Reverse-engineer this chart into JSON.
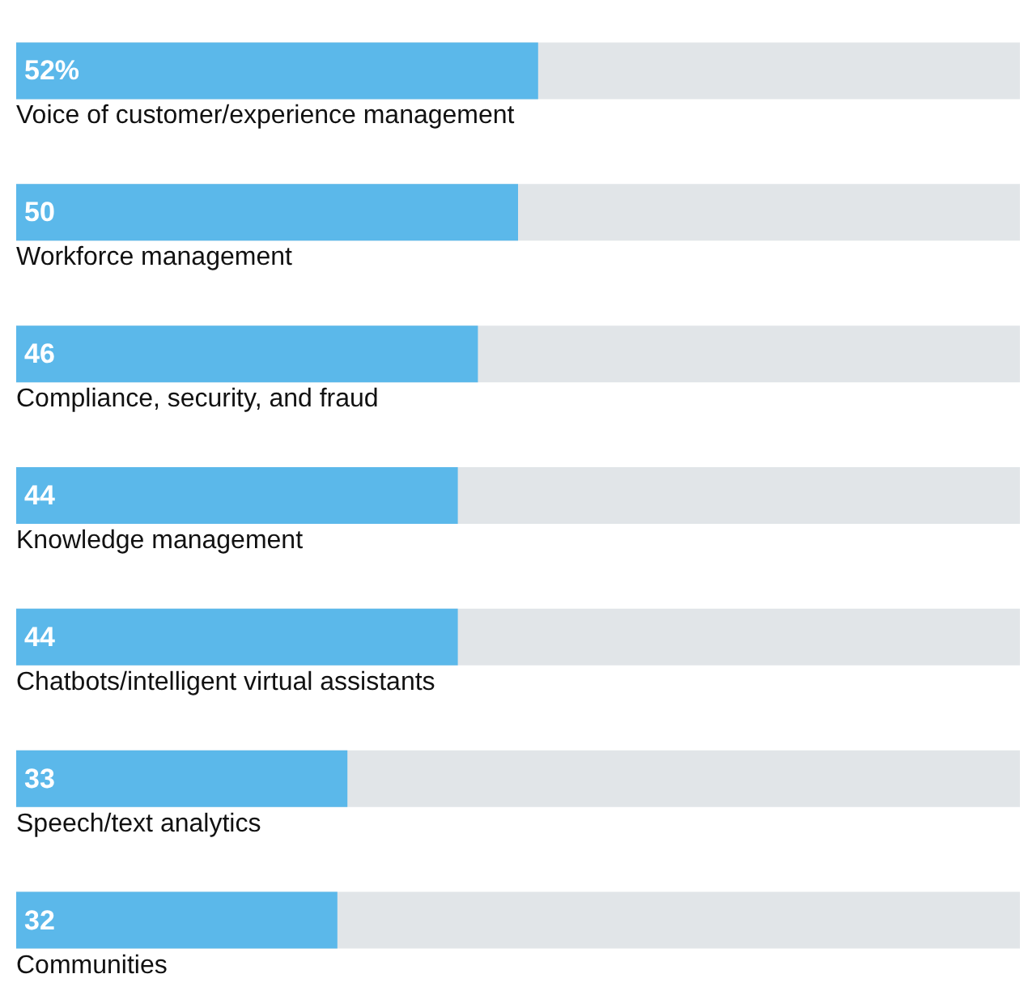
{
  "chart_data": {
    "type": "bar",
    "orientation": "horizontal",
    "categories": [
      "Voice of customer/experience management",
      "Workforce management",
      "Compliance, security, and fraud",
      "Knowledge management",
      "Chatbots/intelligent virtual assistants",
      "Speech/text analytics",
      "Communities"
    ],
    "values": [
      52,
      50,
      46,
      44,
      44,
      33,
      32
    ],
    "value_labels": [
      "52%",
      "50",
      "46",
      "44",
      "44",
      "33",
      "32"
    ],
    "color": "#5bb8ea",
    "xlim": [
      0,
      100
    ],
    "tick_labels": "y"
  }
}
